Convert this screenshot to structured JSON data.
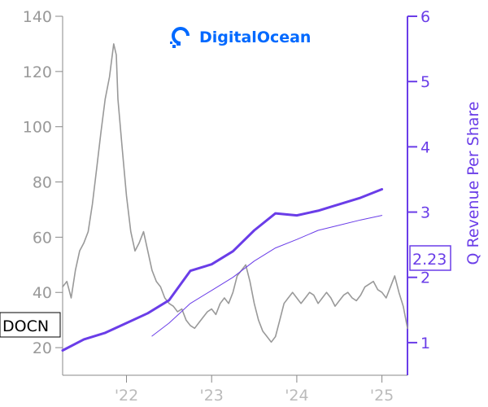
{
  "logo": {
    "text": "DigitalOcean",
    "color": "#0069ff"
  },
  "price_badge": {
    "text": "DOCN"
  },
  "revenue_badge": {
    "text": "2.23"
  },
  "chart_data": {
    "type": "line",
    "xlabel": "",
    "ylabel_left": "",
    "ylabel_right": "Q Revenue Per Share",
    "xlim": [
      2021.25,
      2025.3
    ],
    "ylim_left": [
      10,
      140
    ],
    "ylim_right": [
      0.5,
      6
    ],
    "x_ticks": [
      2022,
      2023,
      2024,
      2025
    ],
    "x_tick_labels": [
      "'22",
      "'23",
      "'24",
      "'25"
    ],
    "y_ticks_left": [
      20,
      40,
      60,
      80,
      100,
      120,
      140
    ],
    "y_ticks_right": [
      1,
      2,
      3,
      4,
      5,
      6
    ],
    "grid": false,
    "series": [
      {
        "axis": "left",
        "color": "#999999",
        "x": [
          2021.25,
          2021.3,
          2021.35,
          2021.4,
          2021.45,
          2021.5,
          2021.55,
          2021.6,
          2021.65,
          2021.7,
          2021.75,
          2021.8,
          2021.85,
          2021.88,
          2021.9,
          2021.95,
          2022.0,
          2022.05,
          2022.1,
          2022.15,
          2022.2,
          2022.25,
          2022.3,
          2022.35,
          2022.4,
          2022.45,
          2022.5,
          2022.55,
          2022.6,
          2022.65,
          2022.7,
          2022.75,
          2022.8,
          2022.85,
          2022.9,
          2022.95,
          2023.0,
          2023.05,
          2023.1,
          2023.15,
          2023.2,
          2023.25,
          2023.3,
          2023.35,
          2023.4,
          2023.45,
          2023.5,
          2023.55,
          2023.6,
          2023.65,
          2023.7,
          2023.75,
          2023.8,
          2023.85,
          2023.9,
          2023.95,
          2024.0,
          2024.05,
          2024.1,
          2024.15,
          2024.2,
          2024.25,
          2024.3,
          2024.35,
          2024.4,
          2024.45,
          2024.5,
          2024.55,
          2024.6,
          2024.65,
          2024.7,
          2024.75,
          2024.8,
          2024.85,
          2024.9,
          2024.95,
          2025.0,
          2025.05,
          2025.1,
          2025.15,
          2025.2,
          2025.25,
          2025.3
        ],
        "values": [
          42,
          44,
          38,
          48,
          55,
          58,
          62,
          72,
          85,
          98,
          110,
          118,
          130,
          126,
          110,
          92,
          75,
          62,
          55,
          58,
          62,
          55,
          48,
          44,
          42,
          38,
          36,
          35,
          33,
          34,
          30,
          28,
          27,
          29,
          31,
          33,
          34,
          32,
          36,
          38,
          36,
          40,
          46,
          48,
          50,
          44,
          36,
          30,
          26,
          24,
          22,
          24,
          30,
          36,
          38,
          40,
          38,
          36,
          38,
          40,
          39,
          36,
          38,
          40,
          38,
          35,
          37,
          39,
          40,
          38,
          37,
          39,
          42,
          43,
          44,
          41,
          40,
          38,
          42,
          46,
          40,
          35,
          27
        ]
      },
      {
        "axis": "right",
        "color": "#6a3de8",
        "x": [
          2021.25,
          2021.5,
          2021.75,
          2022.0,
          2022.25,
          2022.5,
          2022.75,
          2023.0,
          2023.25,
          2023.5,
          2023.75,
          2024.0,
          2024.25,
          2024.5,
          2024.75,
          2025.0
        ],
        "values": [
          0.88,
          1.05,
          1.15,
          1.3,
          1.45,
          1.65,
          2.1,
          2.2,
          2.4,
          2.72,
          2.98,
          2.95,
          3.02,
          3.12,
          3.22,
          3.35
        ]
      },
      {
        "axis": "right",
        "color": "#6a3de8",
        "x": [
          2022.3,
          2022.5,
          2022.75,
          2023.0,
          2023.25,
          2023.5,
          2023.75,
          2024.0,
          2024.25,
          2024.5,
          2024.75,
          2025.0
        ],
        "values": [
          1.1,
          1.3,
          1.6,
          1.8,
          2.0,
          2.25,
          2.45,
          2.58,
          2.72,
          2.8,
          2.88,
          2.95
        ]
      }
    ]
  }
}
